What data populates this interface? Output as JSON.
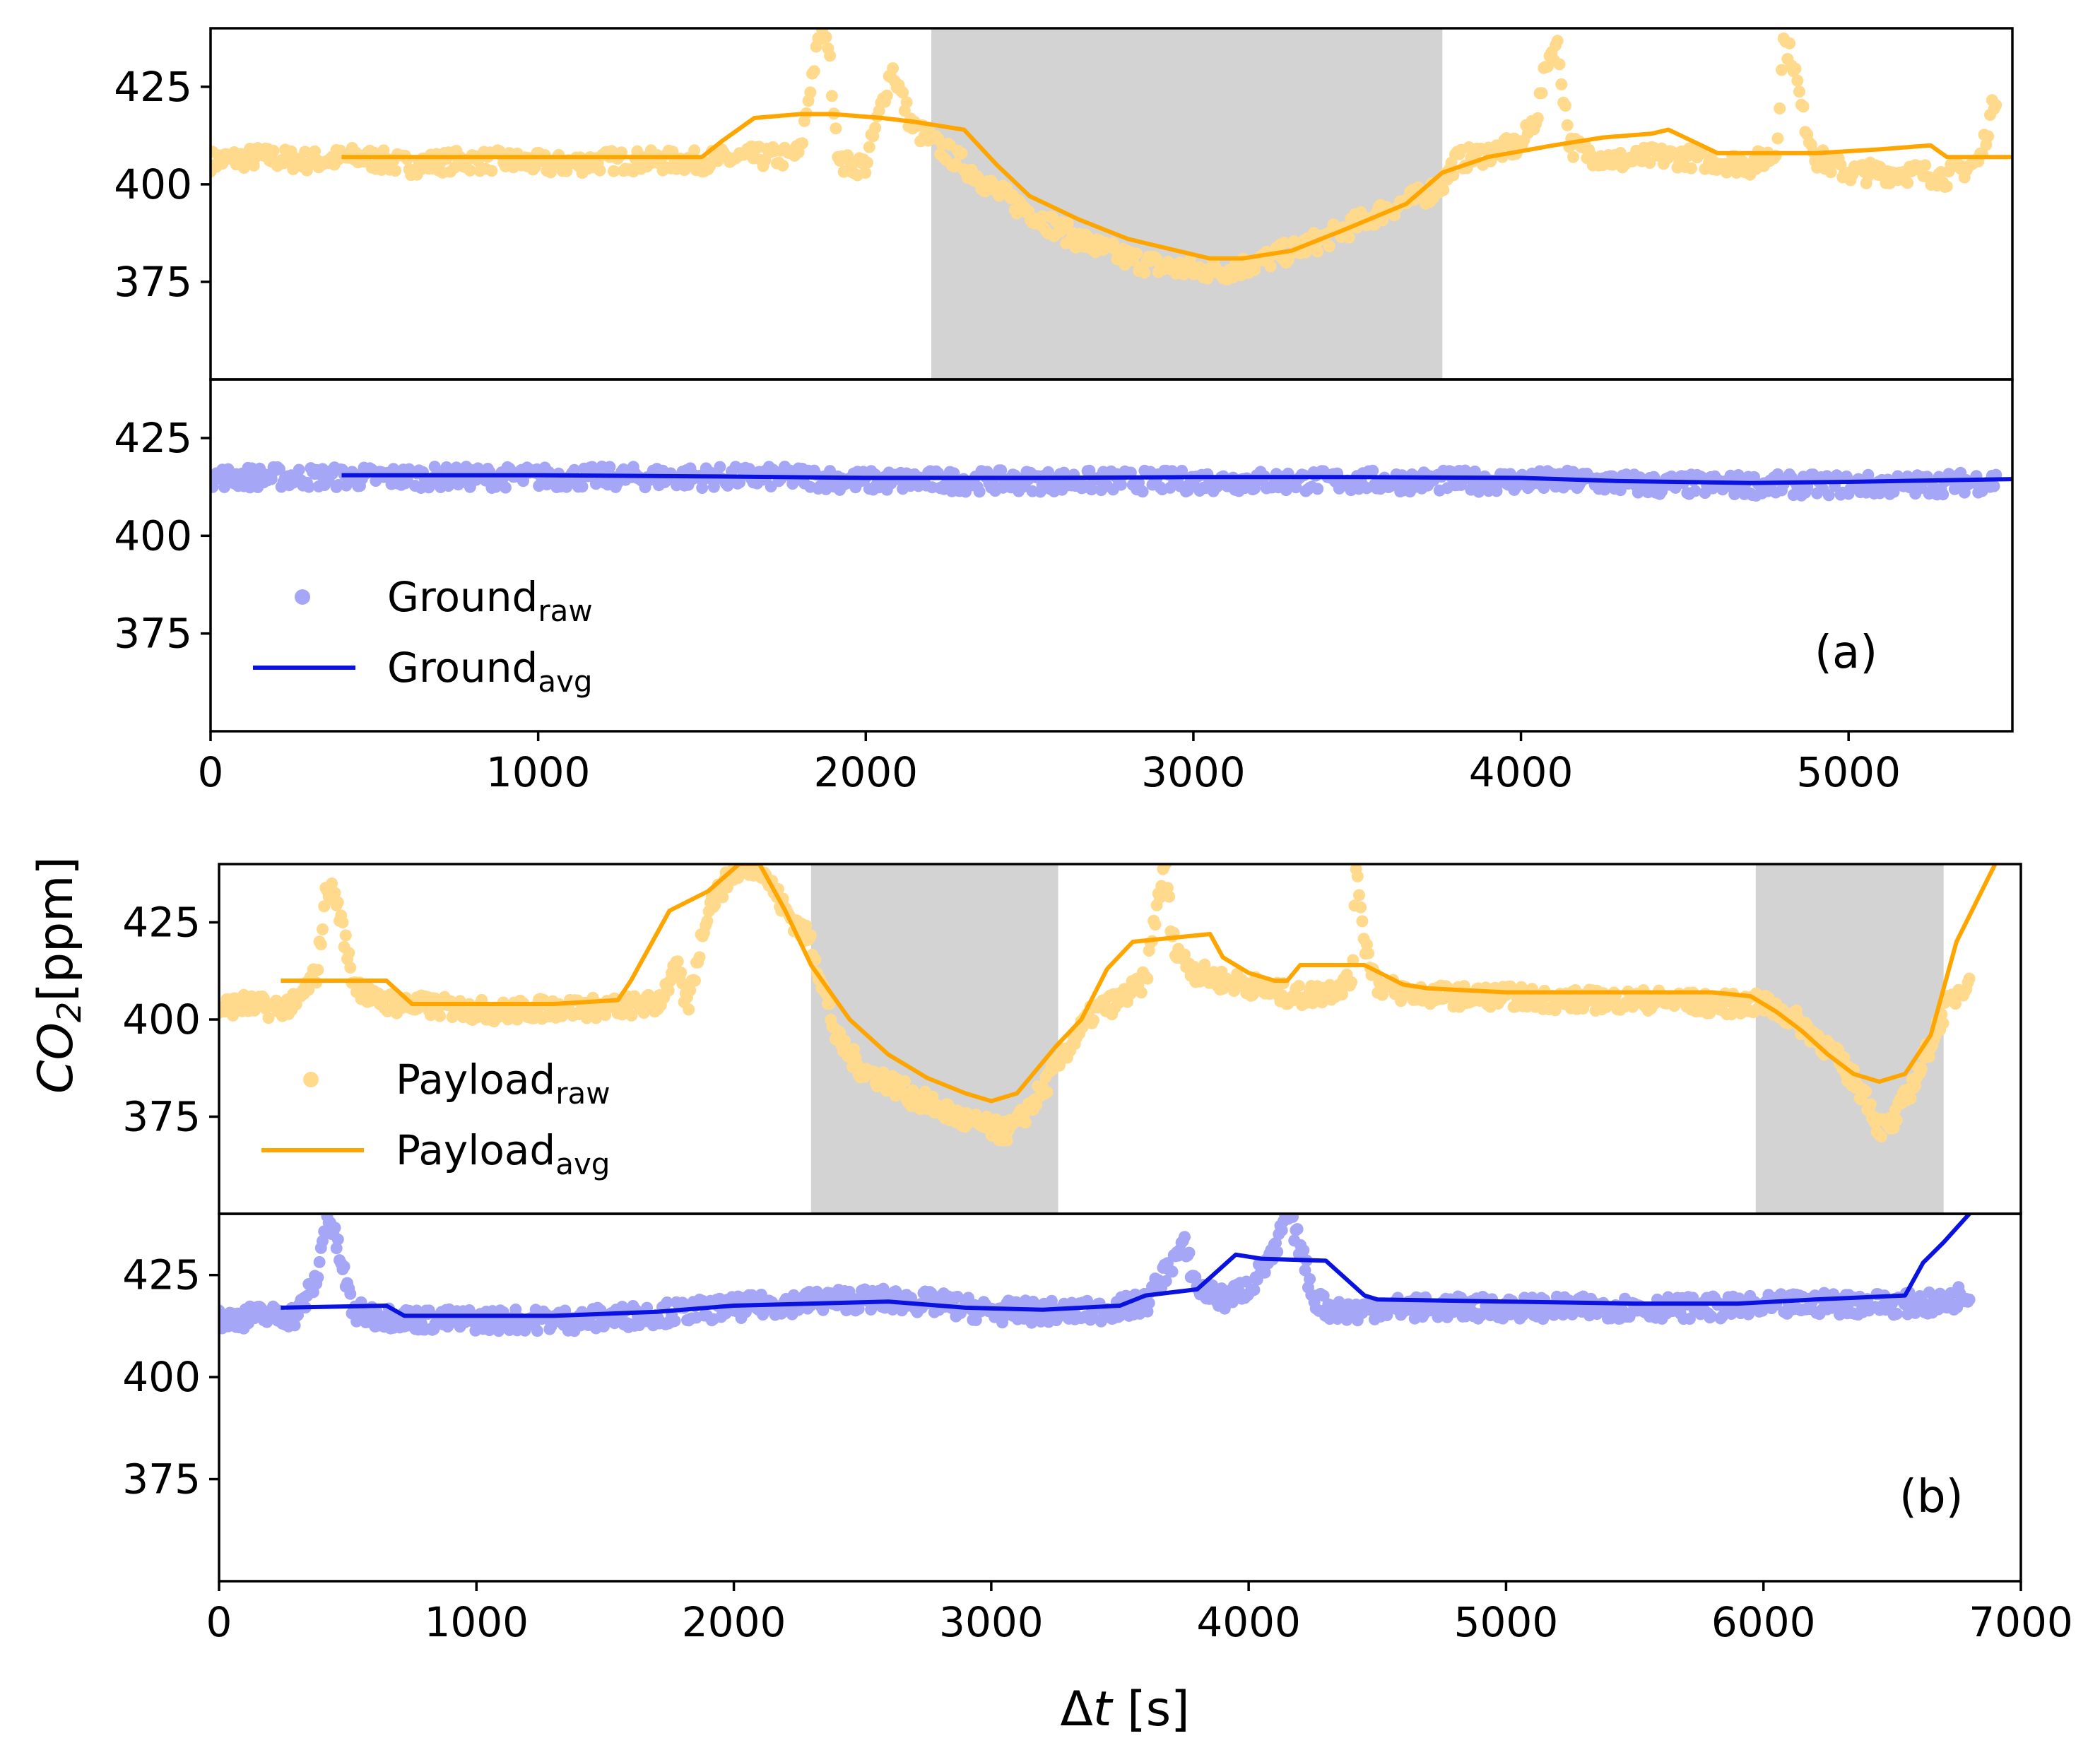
{
  "figure": {
    "ylabel_main": "CO",
    "ylabel_sub": "2",
    "ylabel_unit": "[ppm]",
    "xlabel_delta": "Δ",
    "xlabel_var": "t",
    "xlabel_unit": " [s]"
  },
  "colors": {
    "payload_raw": "#ffd98c",
    "payload_avg": "#ffa500",
    "ground_raw": "#a6a6f7",
    "ground_avg": "#0a12e0",
    "shade": "#d3d3d3",
    "axis": "#000000"
  },
  "chart_data": [
    {
      "type": "scatter",
      "id": "a-top",
      "panel": "(a)",
      "title": "",
      "xlim": [
        0,
        5500
      ],
      "ylim": [
        350,
        440
      ],
      "yticks": [
        375,
        400,
        425
      ],
      "show_xticks": false,
      "shaded_regions": [
        [
          2200,
          3760
        ]
      ],
      "series": [
        {
          "name": "Payload_raw",
          "kind": "raw",
          "color": "payload_raw",
          "x": [
            0,
            150,
            300,
            450,
            600,
            750,
            900,
            1050,
            1200,
            1350,
            1500,
            1650,
            1750,
            1800,
            1830,
            1860,
            1880,
            1920,
            2000,
            2080,
            2140,
            2200,
            2300,
            2400,
            2500,
            2600,
            2700,
            2800,
            2900,
            3000,
            3100,
            3200,
            3300,
            3400,
            3500,
            3600,
            3700,
            3760,
            3800,
            3900,
            4000,
            4050,
            4080,
            4110,
            4150,
            4200,
            4300,
            4400,
            4500,
            4600,
            4700,
            4780,
            4800,
            4830,
            4860,
            4900,
            5000,
            5100,
            5200,
            5300,
            5400,
            5450
          ],
          "y": [
            406,
            407,
            406,
            407,
            405,
            406,
            406,
            405,
            406,
            406,
            406,
            407,
            407,
            408,
            425,
            438,
            440,
            405,
            405,
            430,
            415,
            411,
            405,
            398,
            393,
            388,
            384,
            381,
            379,
            378,
            378,
            380,
            383,
            386,
            390,
            394,
            397,
            400,
            406,
            408,
            410,
            418,
            432,
            436,
            410,
            408,
            406,
            407,
            407,
            406,
            405,
            408,
            437,
            432,
            418,
            407,
            403,
            403,
            403,
            402,
            406,
            423
          ]
        },
        {
          "name": "Payload_avg",
          "kind": "avg",
          "color": "payload_avg",
          "x": [
            400,
            800,
            1200,
            1500,
            1560,
            1660,
            1800,
            1900,
            2050,
            2150,
            2300,
            2400,
            2500,
            2650,
            2800,
            2950,
            3050,
            3150,
            3300,
            3450,
            3650,
            3760,
            3900,
            4100,
            4250,
            4400,
            4450,
            4500,
            4600,
            4900,
            5100,
            5250,
            5300,
            5500
          ],
          "y": [
            407,
            407,
            407,
            407,
            411,
            417,
            418,
            418,
            417,
            416,
            414,
            405,
            397,
            391,
            386,
            383,
            381,
            381,
            383,
            388,
            395,
            403,
            407,
            410,
            412,
            413,
            414,
            412,
            408,
            408,
            409,
            410,
            407,
            407
          ]
        }
      ]
    },
    {
      "type": "scatter",
      "id": "a-bottom",
      "panel": "(a)",
      "title": "",
      "xlim": [
        0,
        5500
      ],
      "ylim": [
        350,
        440
      ],
      "yticks": [
        375,
        400,
        425
      ],
      "xticks": [
        0,
        1000,
        2000,
        3000,
        4000,
        5000
      ],
      "tick_labels": [
        "0",
        "1000",
        "2000",
        "3000",
        "4000",
        "5000"
      ],
      "show_xticks": true,
      "shaded_regions": [],
      "legend": {
        "position": "lower-left",
        "entries": [
          {
            "marker": "dot",
            "color": "ground_raw",
            "text": "Ground",
            "sub": "raw"
          },
          {
            "marker": "line",
            "color": "ground_avg",
            "text": "Ground",
            "sub": "avg"
          }
        ]
      },
      "series": [
        {
          "name": "Ground_raw",
          "kind": "raw",
          "color": "ground_raw",
          "x": [
            0,
            200,
            400,
            600,
            800,
            1000,
            1200,
            1400,
            1600,
            1800,
            2000,
            2200,
            2400,
            2600,
            2800,
            3000,
            3200,
            3400,
            3600,
            3800,
            4000,
            4200,
            4400,
            4600,
            4800,
            5000,
            5200,
            5450
          ],
          "y": [
            415,
            415,
            415,
            415,
            415,
            415,
            415,
            415,
            415,
            415,
            414,
            414,
            414,
            414,
            414,
            414,
            414,
            414,
            414,
            414,
            414,
            414,
            413,
            413,
            413,
            413,
            413,
            414
          ]
        },
        {
          "name": "Ground_avg",
          "kind": "avg",
          "color": "ground_avg",
          "x": [
            400,
            1000,
            1500,
            2000,
            2500,
            3000,
            3500,
            4000,
            4300,
            4700,
            5000,
            5500
          ],
          "y": [
            415.5,
            415.5,
            415.2,
            414.8,
            414.8,
            415,
            415,
            414.8,
            414,
            413.5,
            413.8,
            414.5
          ]
        }
      ]
    },
    {
      "type": "scatter",
      "id": "b-top",
      "panel": "(b)",
      "title": "",
      "xlim": [
        0,
        7000
      ],
      "ylim": [
        350,
        440
      ],
      "yticks": [
        375,
        400,
        425
      ],
      "show_xticks": false,
      "shaded_regions": [
        [
          2300,
          3260
        ],
        [
          5970,
          6700
        ]
      ],
      "legend": {
        "position": "lower-left",
        "entries": [
          {
            "marker": "dot",
            "color": "payload_raw",
            "text": "Payload",
            "sub": "raw"
          },
          {
            "marker": "line",
            "color": "payload_avg",
            "text": "Payload",
            "sub": "avg"
          }
        ]
      },
      "series": [
        {
          "name": "Payload_raw",
          "kind": "raw",
          "color": "payload_raw",
          "x": [
            0,
            100,
            200,
            300,
            380,
            420,
            460,
            520,
            600,
            700,
            900,
            1100,
            1300,
            1500,
            1700,
            1780,
            1820,
            1900,
            2000,
            2100,
            2200,
            2300,
            2400,
            2500,
            2600,
            2700,
            2800,
            2900,
            3000,
            3050,
            3100,
            3200,
            3300,
            3400,
            3500,
            3600,
            3650,
            3680,
            3700,
            3750,
            3800,
            3900,
            4000,
            4100,
            4200,
            4300,
            4400,
            4420,
            4450,
            4500,
            4600,
            4800,
            5000,
            5200,
            5400,
            5600,
            5800,
            5900,
            6000,
            6100,
            6200,
            6300,
            6400,
            6450,
            6500,
            6600,
            6700,
            6800
          ],
          "y": [
            403,
            404,
            403,
            404,
            412,
            435,
            430,
            410,
            405,
            404,
            403,
            402,
            403,
            403,
            404,
            413,
            403,
            429,
            438,
            440,
            428,
            420,
            395,
            387,
            384,
            380,
            377,
            374,
            372,
            371,
            373,
            382,
            393,
            402,
            405,
            410,
            432,
            440,
            421,
            415,
            412,
            410,
            409,
            407,
            406,
            407,
            410,
            440,
            420,
            409,
            407,
            406,
            406,
            405,
            405,
            405,
            404,
            404,
            404,
            401,
            396,
            389,
            380,
            372,
            373,
            386,
            402,
            411
          ]
        },
        {
          "name": "Payload_avg",
          "kind": "avg",
          "color": "payload_avg",
          "x": [
            240,
            400,
            650,
            750,
            1000,
            1300,
            1550,
            1600,
            1750,
            1900,
            2020,
            2100,
            2200,
            2300,
            2450,
            2600,
            2750,
            2900,
            3000,
            3100,
            3250,
            3350,
            3450,
            3550,
            3700,
            3850,
            3900,
            4000,
            4100,
            4150,
            4200,
            4400,
            4450,
            4600,
            4700,
            5000,
            5300,
            5600,
            5800,
            5950,
            6050,
            6150,
            6250,
            6350,
            6450,
            6550,
            6650,
            6750,
            6900
          ],
          "y": [
            410,
            410,
            410,
            404,
            404,
            404,
            405,
            410,
            428,
            433,
            440,
            440,
            428,
            414,
            400,
            391,
            385,
            381,
            379,
            381,
            393,
            400,
            413,
            420,
            421,
            422,
            416,
            412,
            410,
            410,
            414,
            414,
            414,
            409,
            408,
            407,
            407,
            407,
            407,
            406,
            402,
            397,
            391,
            386,
            384,
            386,
            396,
            420,
            440
          ]
        }
      ]
    },
    {
      "type": "scatter",
      "id": "b-bottom",
      "panel": "(b)",
      "title": "",
      "xlim": [
        0,
        7000
      ],
      "ylim": [
        350,
        440
      ],
      "yticks": [
        375,
        400,
        425
      ],
      "xticks": [
        0,
        1000,
        2000,
        3000,
        4000,
        5000,
        6000,
        7000
      ],
      "tick_labels": [
        "0",
        "1000",
        "2000",
        "3000",
        "4000",
        "5000",
        "6000",
        "7000"
      ],
      "show_xticks": true,
      "shaded_regions": [],
      "series": [
        {
          "name": "Ground_raw",
          "kind": "raw",
          "color": "ground_raw",
          "x": [
            0,
            150,
            300,
            380,
            420,
            460,
            520,
            600,
            800,
            1000,
            1200,
            1400,
            1600,
            1800,
            2000,
            2200,
            2400,
            2600,
            2800,
            3000,
            3200,
            3400,
            3600,
            3700,
            3750,
            3800,
            3900,
            4000,
            4100,
            4150,
            4200,
            4250,
            4300,
            4400,
            4500,
            4700,
            5000,
            5300,
            5600,
            5900,
            6200,
            6500,
            6700,
            6800
          ],
          "y": [
            414,
            415,
            415,
            424,
            440,
            432,
            416,
            415,
            414,
            414,
            414,
            414,
            415,
            416,
            417,
            418,
            419,
            419,
            418,
            416,
            416,
            416,
            418,
            428,
            432,
            422,
            419,
            422,
            430,
            440,
            432,
            420,
            417,
            416,
            417,
            417,
            417,
            417,
            417,
            417,
            418,
            418,
            418,
            421
          ]
        },
        {
          "name": "Ground_avg",
          "kind": "avg",
          "color": "ground_avg",
          "x": [
            240,
            650,
            720,
            1000,
            1300,
            1700,
            2000,
            2300,
            2600,
            2900,
            3200,
            3500,
            3600,
            3800,
            3950,
            4050,
            4300,
            4450,
            4500,
            5000,
            5500,
            5900,
            6200,
            6550,
            6620,
            6700,
            6800
          ],
          "y": [
            417,
            417.5,
            415,
            415,
            415,
            416,
            417.5,
            418,
            418.5,
            417,
            416.5,
            417.5,
            420,
            421.5,
            430,
            429,
            428.5,
            420,
            419,
            418.5,
            418,
            418,
            419,
            420,
            428,
            433,
            440
          ]
        }
      ]
    }
  ]
}
